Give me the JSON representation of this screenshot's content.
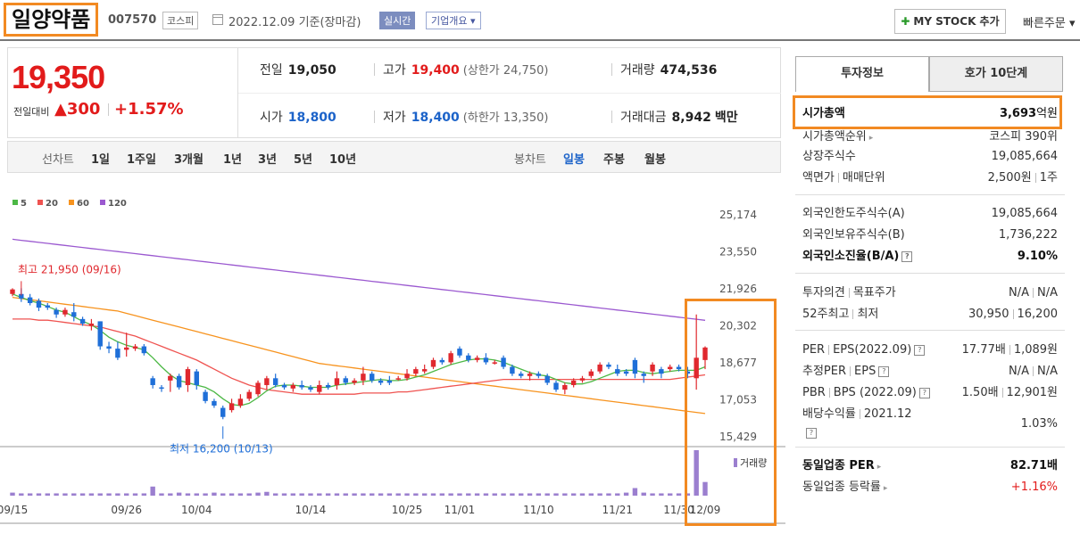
{
  "header": {
    "stock_name": "일양약품",
    "stock_code": "007570",
    "market": "코스피",
    "date": "2022.12.09 기준(장마감)",
    "live_label": "실시간",
    "company_info": "기업개요 ▾",
    "mystock_button": "MY STOCK 추가",
    "quick_order": "빠른주문 ▾"
  },
  "price": {
    "current": "19,350",
    "change_label": "전일대비",
    "change": "▲300",
    "change_pct": "+1.57%",
    "prev_close_label": "전일",
    "prev_close": "19,050",
    "high_label": "고가",
    "high": "19,400",
    "upper_limit": "(상한가 24,750)",
    "volume_label": "거래량",
    "volume": "474,536",
    "open_label": "시가",
    "open": "18,800",
    "low_label": "저가",
    "low": "18,400",
    "lower_limit": "(하한가 13,350)",
    "value_label": "거래대금",
    "value": "8,942",
    "value_unit": "백만"
  },
  "chart_tabs": {
    "line_label": "선차트",
    "line_periods": [
      "1일",
      "1주일",
      "3개월",
      "1년",
      "3년",
      "5년",
      "10년"
    ],
    "candle_label": "봉차트",
    "candle_periods": [
      "일봉",
      "주봉",
      "월봉"
    ],
    "active_candle": "일봉"
  },
  "chart_data": {
    "type": "candlestick",
    "legend": [
      {
        "name": "5",
        "color": "#4cb845"
      },
      {
        "name": "20",
        "color": "#ef5350"
      },
      {
        "name": "60",
        "color": "#f7931e"
      },
      {
        "name": "120",
        "color": "#9b59d0"
      }
    ],
    "y_ticks": [
      "25,174",
      "23,550",
      "21,926",
      "20,302",
      "18,677",
      "17,053",
      "15,429"
    ],
    "ylim": [
      15429,
      25174
    ],
    "x_ticks": [
      "09/15",
      "09/26",
      "10/04",
      "10/14",
      "10/25",
      "11/01",
      "11/10",
      "11/21",
      "11/30",
      "12/09"
    ],
    "high_annotation": "최고 21,950 (09/16)",
    "low_annotation": "최저 16,200 (10/13)",
    "volume_label": "거래량",
    "up_color": "#e0282e",
    "down_color": "#1f6fd8",
    "candles": [
      [
        21700,
        21900,
        21600,
        21950
      ],
      [
        21700,
        21500,
        21350,
        21950
      ],
      [
        21550,
        21300,
        21200,
        21700
      ],
      [
        21400,
        21100,
        20950,
        21500
      ],
      [
        21200,
        21100,
        21000,
        21300
      ],
      [
        21000,
        20800,
        20650,
        21100
      ],
      [
        20800,
        21000,
        20700,
        21100
      ],
      [
        20900,
        20700,
        20500,
        21300
      ],
      [
        20600,
        20400,
        20300,
        20700
      ],
      [
        20300,
        20400,
        20100,
        20600
      ],
      [
        20500,
        19400,
        19250,
        20500
      ],
      [
        19400,
        19300,
        19100,
        19600
      ],
      [
        19300,
        18900,
        18800,
        19600
      ],
      [
        19250,
        19350,
        18950,
        20000
      ],
      [
        19300,
        19400,
        19200,
        19500
      ],
      [
        19400,
        19100,
        19000,
        19500
      ],
      [
        18000,
        17700,
        17550,
        18100
      ],
      [
        17600,
        17550,
        17400,
        17700
      ],
      [
        17900,
        18100,
        17400,
        18200
      ],
      [
        18100,
        17600,
        17500,
        18200
      ],
      [
        17700,
        18400,
        17400,
        18500
      ],
      [
        18300,
        17700,
        17500,
        18400
      ],
      [
        17400,
        17000,
        16900,
        17500
      ],
      [
        17000,
        16800,
        16700,
        17100
      ],
      [
        16700,
        16300,
        16200,
        16800
      ],
      [
        16600,
        16900,
        16500,
        17100
      ],
      [
        16800,
        17100,
        16700,
        17300
      ],
      [
        17100,
        17400,
        17000,
        17500
      ],
      [
        17300,
        17800,
        17200,
        17900
      ],
      [
        17700,
        18000,
        17500,
        18100
      ],
      [
        18000,
        17700,
        17600,
        18200
      ],
      [
        17700,
        17600,
        17500,
        17800
      ],
      [
        17550,
        17700,
        17400,
        17800
      ],
      [
        17700,
        17600,
        17500,
        17900
      ],
      [
        17600,
        17500,
        17400,
        17700
      ],
      [
        17400,
        17700,
        17300,
        17900
      ],
      [
        17700,
        17600,
        17500,
        17800
      ],
      [
        17700,
        18000,
        17500,
        18300
      ],
      [
        18000,
        17800,
        17700,
        18100
      ],
      [
        17800,
        17900,
        17700,
        18000
      ],
      [
        17900,
        18200,
        17700,
        18500
      ],
      [
        18200,
        17900,
        17800,
        18300
      ],
      [
        17900,
        17800,
        17700,
        18000
      ],
      [
        17900,
        17800,
        17700,
        18100
      ],
      [
        18000,
        18000,
        17900,
        18100
      ],
      [
        18000,
        18200,
        17900,
        18400
      ],
      [
        18200,
        18400,
        18100,
        18500
      ],
      [
        18300,
        18400,
        18200,
        18600
      ],
      [
        18500,
        18800,
        18400,
        18900
      ],
      [
        18800,
        18700,
        18600,
        18900
      ],
      [
        18700,
        19100,
        18600,
        19200
      ],
      [
        19300,
        19000,
        18900,
        19400
      ],
      [
        19000,
        18800,
        18700,
        19100
      ],
      [
        18800,
        18900,
        18700,
        19000
      ],
      [
        18900,
        18700,
        18600,
        19100
      ],
      [
        18700,
        18700,
        18600,
        18800
      ],
      [
        18900,
        18500,
        18400,
        19000
      ],
      [
        18500,
        18200,
        18100,
        18600
      ],
      [
        18200,
        18100,
        18000,
        18300
      ],
      [
        18100,
        18200,
        17900,
        18300
      ],
      [
        18200,
        18100,
        18000,
        18300
      ],
      [
        18100,
        17800,
        17700,
        18200
      ],
      [
        17800,
        17500,
        17400,
        17900
      ],
      [
        17500,
        17700,
        17300,
        17800
      ],
      [
        17700,
        17900,
        17600,
        18000
      ],
      [
        17900,
        18000,
        17800,
        18100
      ],
      [
        18100,
        18300,
        18000,
        18400
      ],
      [
        18300,
        18600,
        18200,
        18700
      ],
      [
        18600,
        18500,
        18400,
        18700
      ],
      [
        18400,
        18200,
        18100,
        18600
      ],
      [
        18300,
        18200,
        18100,
        18400
      ],
      [
        18800,
        18200,
        18000,
        18900
      ],
      [
        18200,
        18100,
        17800,
        18300
      ],
      [
        18300,
        18600,
        18100,
        18700
      ],
      [
        18400,
        18200,
        18000,
        18500
      ],
      [
        18400,
        18500,
        18300,
        18600
      ],
      [
        18500,
        18400,
        18300,
        18600
      ],
      [
        18300,
        18200,
        18000,
        18500
      ],
      [
        18000,
        18900,
        17500,
        20800
      ],
      [
        18800,
        19350,
        18400,
        19400
      ]
    ],
    "ma5": [
      21700,
      21550,
      21400,
      21300,
      21150,
      21000,
      20900,
      20700,
      20500,
      20350,
      20100,
      19800,
      19600,
      19450,
      19350,
      19250,
      18900,
      18500,
      18150,
      17900,
      17800,
      17700,
      17600,
      17400,
      17100,
      16850,
      16800,
      16900,
      17150,
      17450,
      17650,
      17700,
      17700,
      17650,
      17600,
      17600,
      17600,
      17700,
      17750,
      17800,
      17850,
      17900,
      17950,
      17900,
      17900,
      17950,
      18050,
      18150,
      18300,
      18450,
      18600,
      18700,
      18800,
      18850,
      18850,
      18800,
      18700,
      18550,
      18400,
      18250,
      18150,
      18100,
      17950,
      17800,
      17750,
      17750,
      17850,
      18000,
      18150,
      18300,
      18350,
      18350,
      18250,
      18200,
      18250,
      18300,
      18350,
      18350,
      18350,
      18500
    ],
    "ma20": [
      20600,
      20600,
      20600,
      20550,
      20550,
      20500,
      20450,
      20400,
      20350,
      20300,
      20250,
      20150,
      20050,
      19950,
      19850,
      19700,
      19550,
      19400,
      19250,
      19100,
      18950,
      18800,
      18600,
      18400,
      18200,
      18000,
      17850,
      17700,
      17600,
      17500,
      17450,
      17400,
      17350,
      17300,
      17300,
      17300,
      17300,
      17300,
      17300,
      17300,
      17350,
      17350,
      17350,
      17350,
      17400,
      17400,
      17450,
      17500,
      17550,
      17600,
      17650,
      17700,
      17750,
      17800,
      17850,
      17900,
      17950,
      17950,
      17950,
      17950,
      17950,
      17950,
      17950,
      17950,
      17950,
      17950,
      17950,
      17950,
      17950,
      17950,
      17950,
      17950,
      17950,
      17950,
      17950,
      17950,
      18000,
      18050,
      18100,
      18150
    ],
    "ma60": [
      21550,
      21500,
      21450,
      21400,
      21350,
      21300,
      21250,
      21200,
      21150,
      21100,
      21050,
      21000,
      20950,
      20850,
      20750,
      20650,
      20550,
      20450,
      20350,
      20250,
      20150,
      20050,
      19950,
      19850,
      19750,
      19650,
      19550,
      19450,
      19350,
      19250,
      19150,
      19050,
      18950,
      18850,
      18750,
      18650,
      18600,
      18550,
      18500,
      18450,
      18400,
      18350,
      18300,
      18250,
      18200,
      18150,
      18100,
      18050,
      18000,
      17950,
      17900,
      17850,
      17800,
      17750,
      17700,
      17650,
      17600,
      17550,
      17500,
      17450,
      17400,
      17350,
      17300,
      17250,
      17200,
      17150,
      17100,
      17050,
      17000,
      16950,
      16900,
      16850,
      16800,
      16750,
      16700,
      16650,
      16600,
      16550,
      16500,
      16450
    ],
    "volume": [
      4,
      3,
      3,
      3,
      3,
      3,
      3,
      3,
      3,
      3,
      3,
      3,
      3,
      3,
      3,
      3,
      12,
      3,
      3,
      4,
      3,
      3,
      3,
      4,
      3,
      3,
      3,
      3,
      4,
      5,
      3,
      3,
      3,
      3,
      3,
      3,
      3,
      3,
      3,
      3,
      3,
      3,
      3,
      3,
      3,
      3,
      3,
      3,
      3,
      3,
      3,
      3,
      3,
      3,
      3,
      3,
      3,
      3,
      3,
      3,
      3,
      3,
      3,
      3,
      3,
      3,
      3,
      3,
      3,
      3,
      4,
      10,
      4,
      3,
      3,
      3,
      3,
      3,
      60,
      18
    ]
  },
  "panel": {
    "tab_invest": "투자정보",
    "tab_hoga": "호가 10단계",
    "market_cap_label": "시가총액",
    "market_cap_value": "3,693",
    "market_cap_unit": "억원",
    "rank_label": "시가총액순위",
    "rank_value": "코스피 390위",
    "shares_label": "상장주식수",
    "shares_value": "19,085,664",
    "face_label": "액면가",
    "face_sub": "매매단위",
    "face_value": "2,500원",
    "face_unit": "1주",
    "foreign_limit_label": "외국인한도주식수(A)",
    "foreign_limit_value": "19,085,664",
    "foreign_hold_label": "외국인보유주식수(B)",
    "foreign_hold_value": "1,736,222",
    "foreign_ratio_label": "외국인소진율(B/A)",
    "foreign_ratio_value": "9.10%",
    "opinion_label": "투자의견",
    "target_label": "목표주가",
    "opinion_value": "N/A",
    "target_value": "N/A",
    "w52_label": "52주최고",
    "w52_sub": "최저",
    "w52_high": "30,950",
    "w52_low": "16,200",
    "per_label": "PER",
    "eps_label": "EPS(2022.09)",
    "per_value": "17.77배",
    "eps_value": "1,089원",
    "eper_label": "추정PER",
    "eeps_label": "EPS",
    "eper_value": "N/A",
    "eeps_value": "N/A",
    "pbr_label": "PBR",
    "bps_label": "BPS (2022.09)",
    "pbr_value": "1.50배",
    "bps_value": "12,901원",
    "div_label": "배당수익률",
    "div_sub": "2021.12",
    "div_value": "1.03%",
    "peer_per_label": "동일업종 PER",
    "peer_per_value": "82.71배",
    "peer_chg_label": "동일업종 등락률",
    "peer_chg_value": "+1.16%"
  }
}
